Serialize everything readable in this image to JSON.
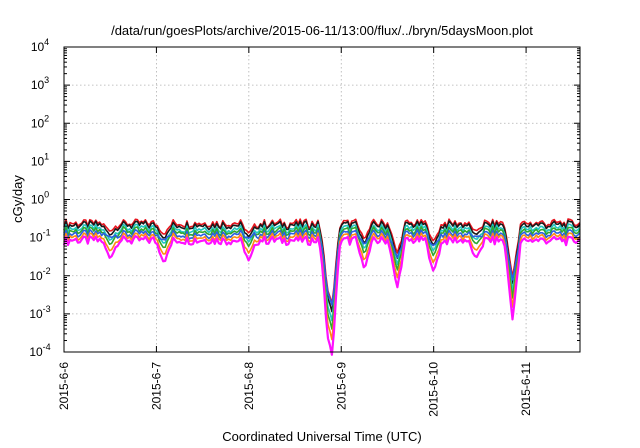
{
  "chart_data": {
    "type": "line",
    "title": "/data/run/goesPlots/archive/2015-06-11/13:00/flux/../bryn/5daysMoon.plot",
    "xlabel": "Coordinated Universal Time (UTC)",
    "ylabel": "cGy/day",
    "y_scale": "log",
    "ylim": [
      0.0001,
      10000
    ],
    "xlim": [
      "2015-06-06",
      "2015-06-11 14:00"
    ],
    "grid": true,
    "x_tick_labels": [
      "2015-6-6",
      "2015-6-7",
      "2015-6-8",
      "2015-6-9",
      "2015-6-10",
      "2015-6-11"
    ],
    "x_ticks": [
      "2015-06-06",
      "2015-06-07",
      "2015-06-08",
      "2015-06-09",
      "2015-06-10",
      "2015-06-11"
    ],
    "y_ticks": [
      {
        "value": 0.0001,
        "base": "10",
        "exp": "-4"
      },
      {
        "value": 0.001,
        "base": "10",
        "exp": "-3"
      },
      {
        "value": 0.01,
        "base": "10",
        "exp": "-2"
      },
      {
        "value": 0.1,
        "base": "10",
        "exp": "-1"
      },
      {
        "value": 1,
        "base": "10",
        "exp": "0"
      },
      {
        "value": 10,
        "base": "10",
        "exp": "1"
      },
      {
        "value": 100,
        "base": "10",
        "exp": "2"
      },
      {
        "value": 1000,
        "base": "10",
        "exp": "3"
      },
      {
        "value": 10000,
        "base": "10",
        "exp": "4"
      }
    ],
    "series": [
      {
        "color": "#e8141e",
        "baseline": 0.24,
        "dip_depth": 0.9
      },
      {
        "color": "#1a1a1a",
        "baseline": 0.215,
        "dip_depth": 0.95
      },
      {
        "color": "#22c7c0",
        "baseline": 0.175,
        "dip_depth": 1.0
      },
      {
        "color": "#2fa82f",
        "baseline": 0.15,
        "dip_depth": 1.05
      },
      {
        "color": "#2a5fe0",
        "baseline": 0.125,
        "dip_depth": 0.85
      },
      {
        "color": "#ff8c10",
        "baseline": 0.105,
        "dip_depth": 1.1
      },
      {
        "color": "#ff10ff",
        "baseline": 0.085,
        "dip_depth": 1.2
      }
    ],
    "dips": [
      {
        "x": "2015-06-06 12:00",
        "min": 0.05
      },
      {
        "x": "2015-06-07 02:00",
        "min": 0.04
      },
      {
        "x": "2015-06-08 00:00",
        "min": 0.045
      },
      {
        "x": "2015-06-08 20:30",
        "min": 0.003
      },
      {
        "x": "2015-06-08 21:30",
        "min": 0.00035
      },
      {
        "x": "2015-06-09 06:00",
        "min": 0.03
      },
      {
        "x": "2015-06-09 14:30",
        "min": 0.011
      },
      {
        "x": "2015-06-10 00:00",
        "min": 0.025
      },
      {
        "x": "2015-06-10 11:00",
        "min": 0.05
      },
      {
        "x": "2015-06-10 20:30",
        "min": 0.0023
      }
    ]
  }
}
